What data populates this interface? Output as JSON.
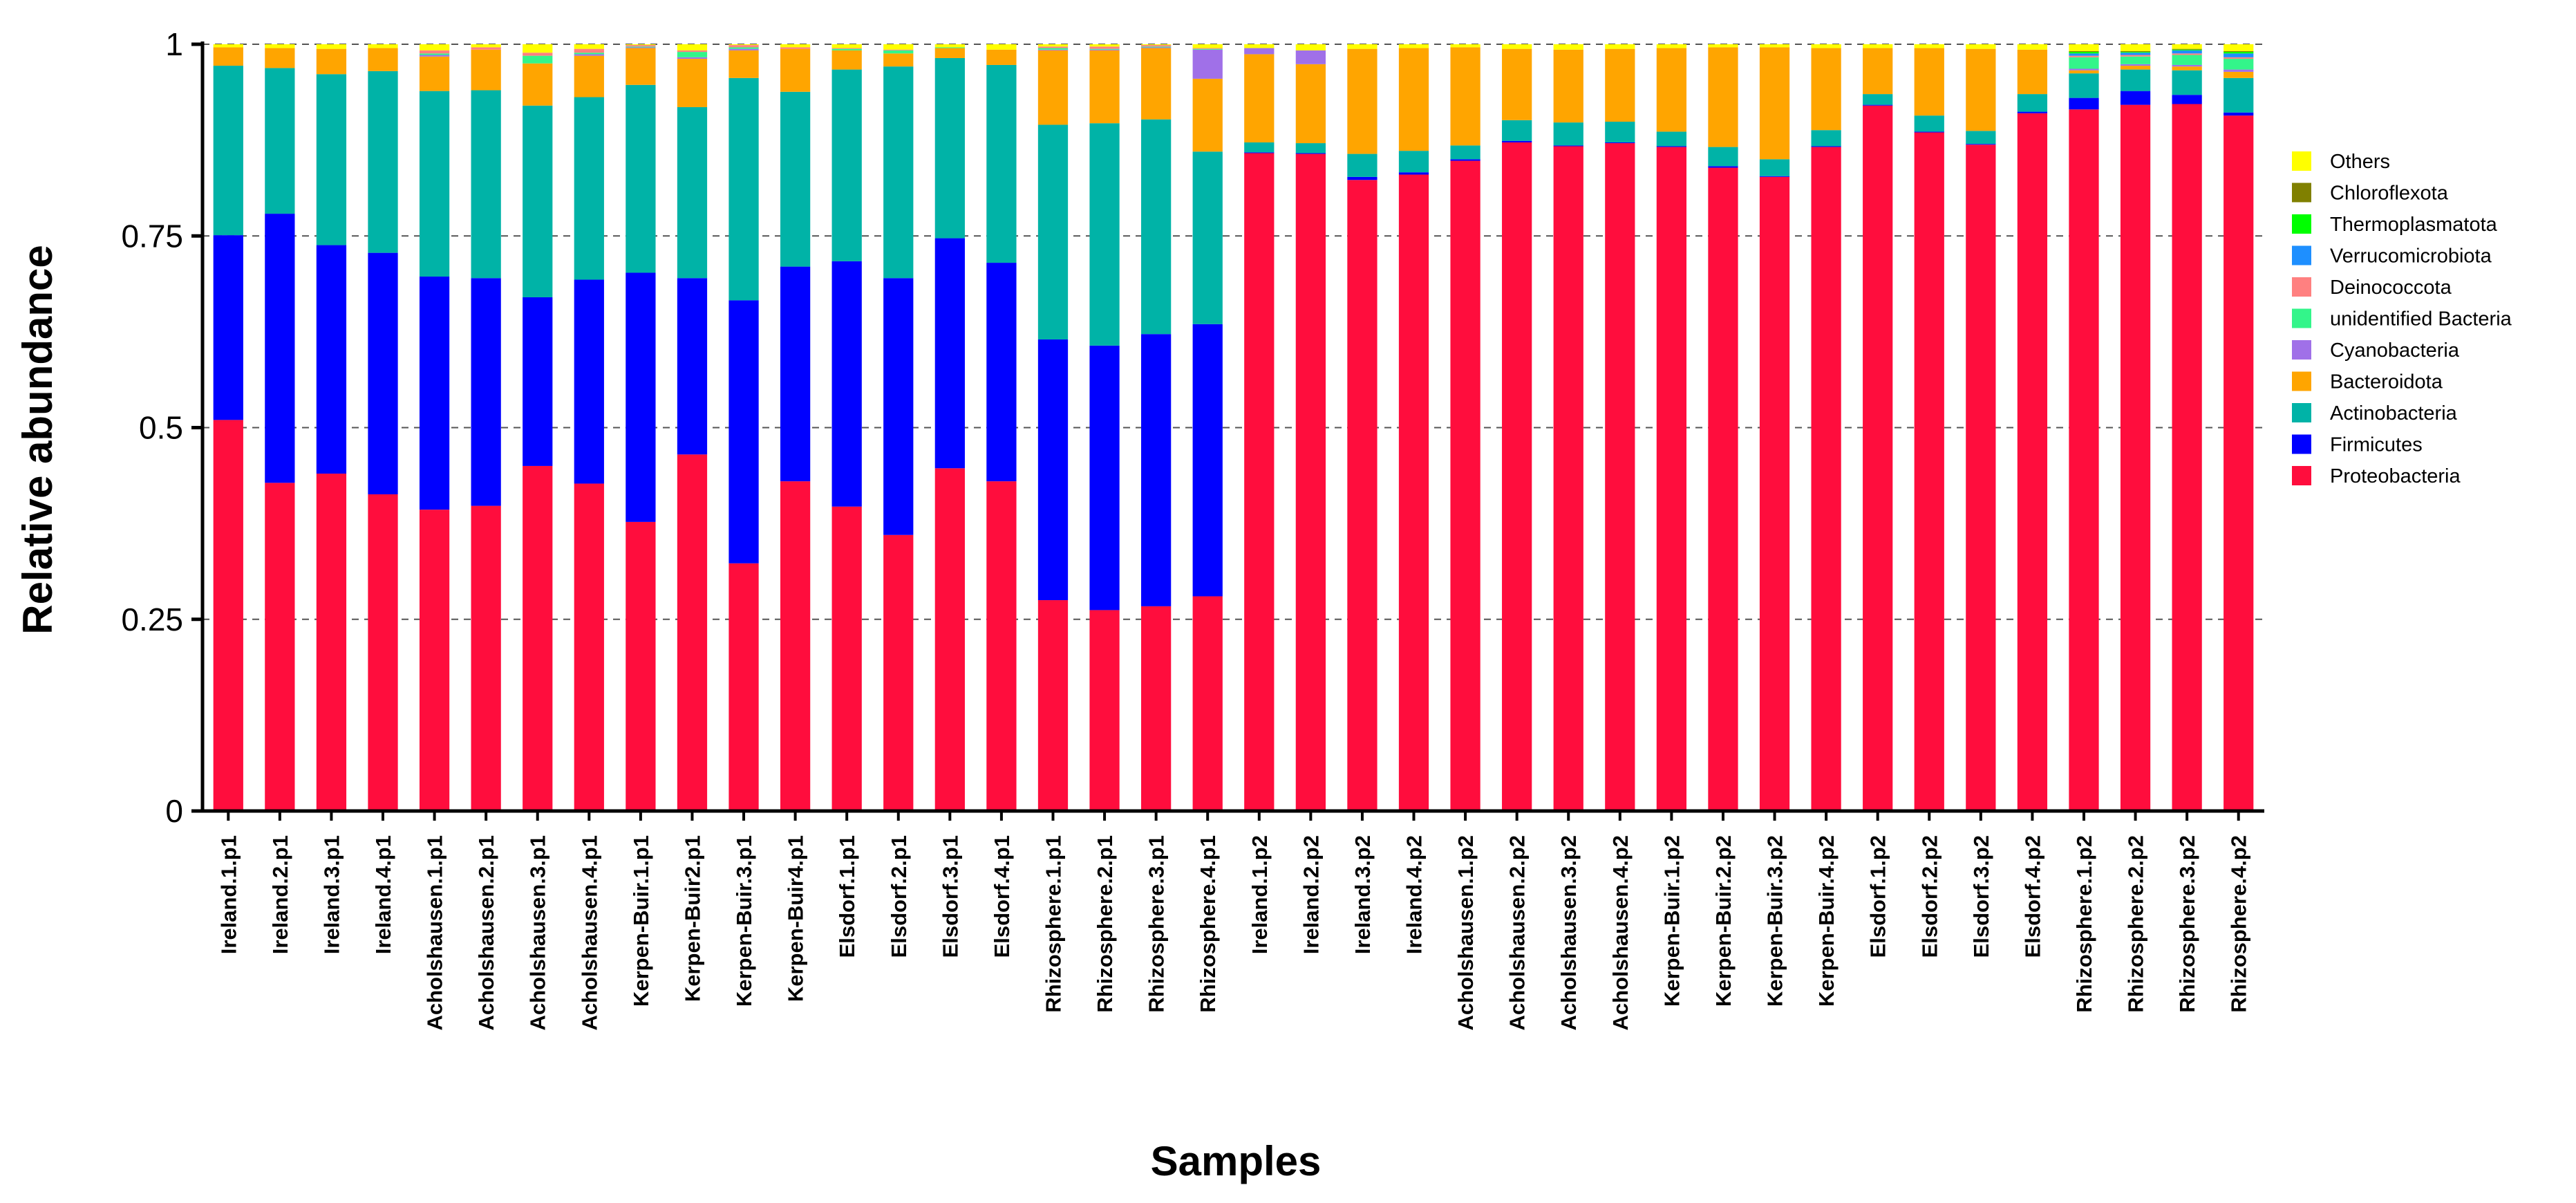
{
  "chart_data": {
    "type": "bar",
    "stacked": true,
    "title": "",
    "xlabel": "Samples",
    "ylabel": "Relative abundance",
    "ylim": [
      0,
      1
    ],
    "yticks": [
      "0",
      "0.25",
      "0.5",
      "0.75",
      "1"
    ],
    "grid": "horizontal-dashed",
    "legend_position": "right",
    "categories": [
      "Ireland.1.p1",
      "Ireland.2.p1",
      "Ireland.3.p1",
      "Ireland.4.p1",
      "Acholshausen.1.p1",
      "Acholshausen.2.p1",
      "Acholshausen.3.p1",
      "Acholshausen.4.p1",
      "Kerpen-Buir.1.p1",
      "Kerpen-Buir2.p1",
      "Kerpen-Buir.3.p1",
      "Kerpen-Buir4.p1",
      "Elsdorf.1.p1",
      "Elsdorf.2.p1",
      "Elsdorf.3.p1",
      "Elsdorf.4.p1",
      "Rhizosphere.1.p1",
      "Rhizosphere.2.p1",
      "Rhizosphere.3.p1",
      "Rhizosphere.4.p1",
      "Ireland.1.p2",
      "Ireland.2.p2",
      "Ireland.3.p2",
      "Ireland.4.p2",
      "Acholshausen.1.p2",
      "Acholshausen.2.p2",
      "Acholshausen.3.p2",
      "Acholshausen.4.p2",
      "Kerpen-Buir.1.p2",
      "Kerpen-Buir.2.p2",
      "Kerpen-Buir.3.p2",
      "Kerpen-Buir.4.p2",
      "Elsdorf.1.p2",
      "Elsdorf.2.p2",
      "Elsdorf.3.p2",
      "Elsdorf.4.p2",
      "Rhizosphere.1.p2",
      "Rhizosphere.2.p2",
      "Rhizosphere.3.p2",
      "Rhizosphere.4.p2"
    ],
    "series": [
      {
        "name": "Proteobacteria",
        "color": "#ff0d3d",
        "values": [
          0.51,
          0.428,
          0.44,
          0.413,
          0.393,
          0.398,
          0.45,
          0.427,
          0.377,
          0.465,
          0.323,
          0.43,
          0.397,
          0.36,
          0.447,
          0.43,
          0.275,
          0.262,
          0.267,
          0.28,
          0.858,
          0.857,
          0.823,
          0.83,
          0.848,
          0.872,
          0.867,
          0.871,
          0.866,
          0.839,
          0.827,
          0.866,
          0.92,
          0.885,
          0.869,
          0.91,
          0.915,
          0.921,
          0.922,
          0.907
        ]
      },
      {
        "name": "Firmicutes",
        "color": "#0000ff",
        "values": [
          0.241,
          0.351,
          0.298,
          0.315,
          0.304,
          0.297,
          0.22,
          0.266,
          0.325,
          0.23,
          0.343,
          0.28,
          0.32,
          0.335,
          0.3,
          0.285,
          0.34,
          0.345,
          0.355,
          0.355,
          0.001,
          0.001,
          0.004,
          0.003,
          0.002,
          0.002,
          0.001,
          0.001,
          0.001,
          0.002,
          0.001,
          0.001,
          0.001,
          0.001,
          0.001,
          0.002,
          0.015,
          0.018,
          0.012,
          0.004
        ]
      },
      {
        "name": "Actinobacteria",
        "color": "#00b3a7",
        "values": [
          0.221,
          0.19,
          0.223,
          0.237,
          0.242,
          0.245,
          0.25,
          0.238,
          0.245,
          0.223,
          0.29,
          0.228,
          0.25,
          0.276,
          0.235,
          0.258,
          0.28,
          0.29,
          0.28,
          0.225,
          0.013,
          0.013,
          0.03,
          0.028,
          0.018,
          0.027,
          0.03,
          0.027,
          0.019,
          0.025,
          0.022,
          0.021,
          0.014,
          0.021,
          0.017,
          0.023,
          0.032,
          0.028,
          0.032,
          0.045
        ]
      },
      {
        "name": "Bacteroidota",
        "color": "#ffa500",
        "values": [
          0.024,
          0.026,
          0.033,
          0.03,
          0.045,
          0.053,
          0.055,
          0.054,
          0.048,
          0.063,
          0.036,
          0.056,
          0.025,
          0.017,
          0.013,
          0.02,
          0.097,
          0.095,
          0.093,
          0.095,
          0.115,
          0.103,
          0.137,
          0.134,
          0.128,
          0.093,
          0.095,
          0.095,
          0.109,
          0.13,
          0.146,
          0.107,
          0.06,
          0.088,
          0.107,
          0.058,
          0.004,
          0.005,
          0.005,
          0.008
        ]
      },
      {
        "name": "Cyanobacteria",
        "color": "#a070e8",
        "values": [
          0,
          0,
          0,
          0,
          0.002,
          0,
          0,
          0.002,
          0.001,
          0.002,
          0.002,
          0,
          0,
          0,
          0,
          0,
          0.001,
          0.001,
          0.001,
          0.038,
          0.008,
          0.018,
          0,
          0,
          0,
          0,
          0,
          0,
          0,
          0,
          0,
          0,
          0,
          0,
          0,
          0,
          0.002,
          0.002,
          0.002,
          0.003
        ]
      },
      {
        "name": "unidentified Bacteria",
        "color": "#33f58a",
        "values": [
          0,
          0,
          0,
          0,
          0.002,
          0,
          0.01,
          0.002,
          0.001,
          0.007,
          0.002,
          0,
          0.002,
          0.004,
          0.001,
          0,
          0.002,
          0.001,
          0.001,
          0.001,
          0,
          0,
          0,
          0,
          0,
          0,
          0,
          0,
          0,
          0,
          0,
          0,
          0,
          0,
          0,
          0,
          0.015,
          0.01,
          0.013,
          0.014
        ]
      },
      {
        "name": "Deinococcota",
        "color": "#ff8080",
        "values": [
          0,
          0,
          0,
          0,
          0.004,
          0.003,
          0.004,
          0.005,
          0.002,
          0.002,
          0.003,
          0.002,
          0.001,
          0.001,
          0,
          0,
          0.002,
          0.003,
          0.002,
          0.001,
          0,
          0,
          0,
          0,
          0,
          0,
          0,
          0,
          0,
          0,
          0,
          0,
          0,
          0,
          0,
          0,
          0.002,
          0.002,
          0.002,
          0.002
        ]
      },
      {
        "name": "Verrucomicrobiota",
        "color": "#1e8fff",
        "values": [
          0,
          0,
          0,
          0,
          0,
          0,
          0,
          0,
          0,
          0,
          0,
          0,
          0,
          0,
          0,
          0,
          0,
          0,
          0,
          0,
          0,
          0,
          0,
          0,
          0,
          0,
          0,
          0,
          0,
          0,
          0,
          0,
          0,
          0,
          0,
          0,
          0.003,
          0.003,
          0.004,
          0.005
        ]
      },
      {
        "name": "Thermoplasmatota",
        "color": "#00ff00",
        "values": [
          0,
          0,
          0,
          0,
          0,
          0,
          0,
          0,
          0,
          0,
          0,
          0,
          0,
          0,
          0,
          0,
          0,
          0,
          0,
          0,
          0,
          0,
          0,
          0,
          0,
          0,
          0,
          0,
          0,
          0,
          0,
          0,
          0,
          0,
          0,
          0,
          0.002,
          0.001,
          0.001,
          0.002
        ]
      },
      {
        "name": "Chloroflexota",
        "color": "#808000",
        "values": [
          0,
          0,
          0,
          0,
          0,
          0,
          0,
          0,
          0,
          0,
          0,
          0,
          0,
          0,
          0,
          0,
          0,
          0,
          0,
          0,
          0,
          0,
          0,
          0,
          0,
          0,
          0,
          0,
          0,
          0,
          0,
          0,
          0,
          0,
          0,
          0,
          0.001,
          0.001,
          0.001,
          0.001
        ]
      },
      {
        "name": "Others",
        "color": "#ffff00",
        "values": [
          0.004,
          0.005,
          0.006,
          0.005,
          0.008,
          0.004,
          0.011,
          0.006,
          0.001,
          0.008,
          0.001,
          0.004,
          0.005,
          0.007,
          0.004,
          0.007,
          0.003,
          0.003,
          0.001,
          0.005,
          0.005,
          0.008,
          0.006,
          0.005,
          0.004,
          0.006,
          0.007,
          0.006,
          0.005,
          0.004,
          0.004,
          0.005,
          0.005,
          0.005,
          0.006,
          0.007,
          0.009,
          0.009,
          0.006,
          0.009
        ]
      }
    ]
  }
}
